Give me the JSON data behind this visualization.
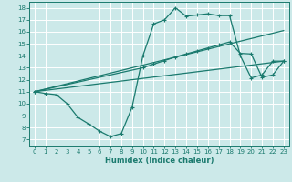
{
  "title": "",
  "xlabel": "Humidex (Indice chaleur)",
  "xlim": [
    -0.5,
    23.5
  ],
  "ylim": [
    6.5,
    18.5
  ],
  "xticks": [
    0,
    1,
    2,
    3,
    4,
    5,
    6,
    7,
    8,
    9,
    10,
    11,
    12,
    13,
    14,
    15,
    16,
    17,
    18,
    19,
    20,
    21,
    22,
    23
  ],
  "yticks": [
    7,
    8,
    9,
    10,
    11,
    12,
    13,
    14,
    15,
    16,
    17,
    18
  ],
  "bg_color": "#cce9e9",
  "grid_color": "#b0d8d8",
  "line_color": "#1a7a6e",
  "line1_x": [
    0,
    1,
    2,
    3,
    4,
    5,
    6,
    7,
    8,
    9,
    10,
    11,
    12,
    13,
    14,
    15,
    16,
    17,
    18,
    19,
    20,
    21,
    22,
    23
  ],
  "line1_y": [
    11.0,
    10.85,
    10.75,
    10.0,
    8.85,
    8.3,
    7.7,
    7.25,
    7.5,
    9.7,
    14.0,
    16.65,
    17.0,
    18.0,
    17.3,
    17.4,
    17.5,
    17.35,
    17.35,
    14.0,
    12.15,
    12.4,
    13.55,
    13.55
  ],
  "line2_x": [
    0,
    23
  ],
  "line2_y": [
    11.0,
    16.1
  ],
  "line3_x": [
    0,
    23
  ],
  "line3_y": [
    11.0,
    13.55
  ],
  "line4_x": [
    0,
    10,
    11,
    12,
    13,
    14,
    15,
    16,
    17,
    18,
    19,
    20,
    21,
    22,
    23
  ],
  "line4_y": [
    11.0,
    13.0,
    13.3,
    13.6,
    13.9,
    14.15,
    14.4,
    14.65,
    14.9,
    15.15,
    14.2,
    14.15,
    12.2,
    12.4,
    13.55
  ]
}
